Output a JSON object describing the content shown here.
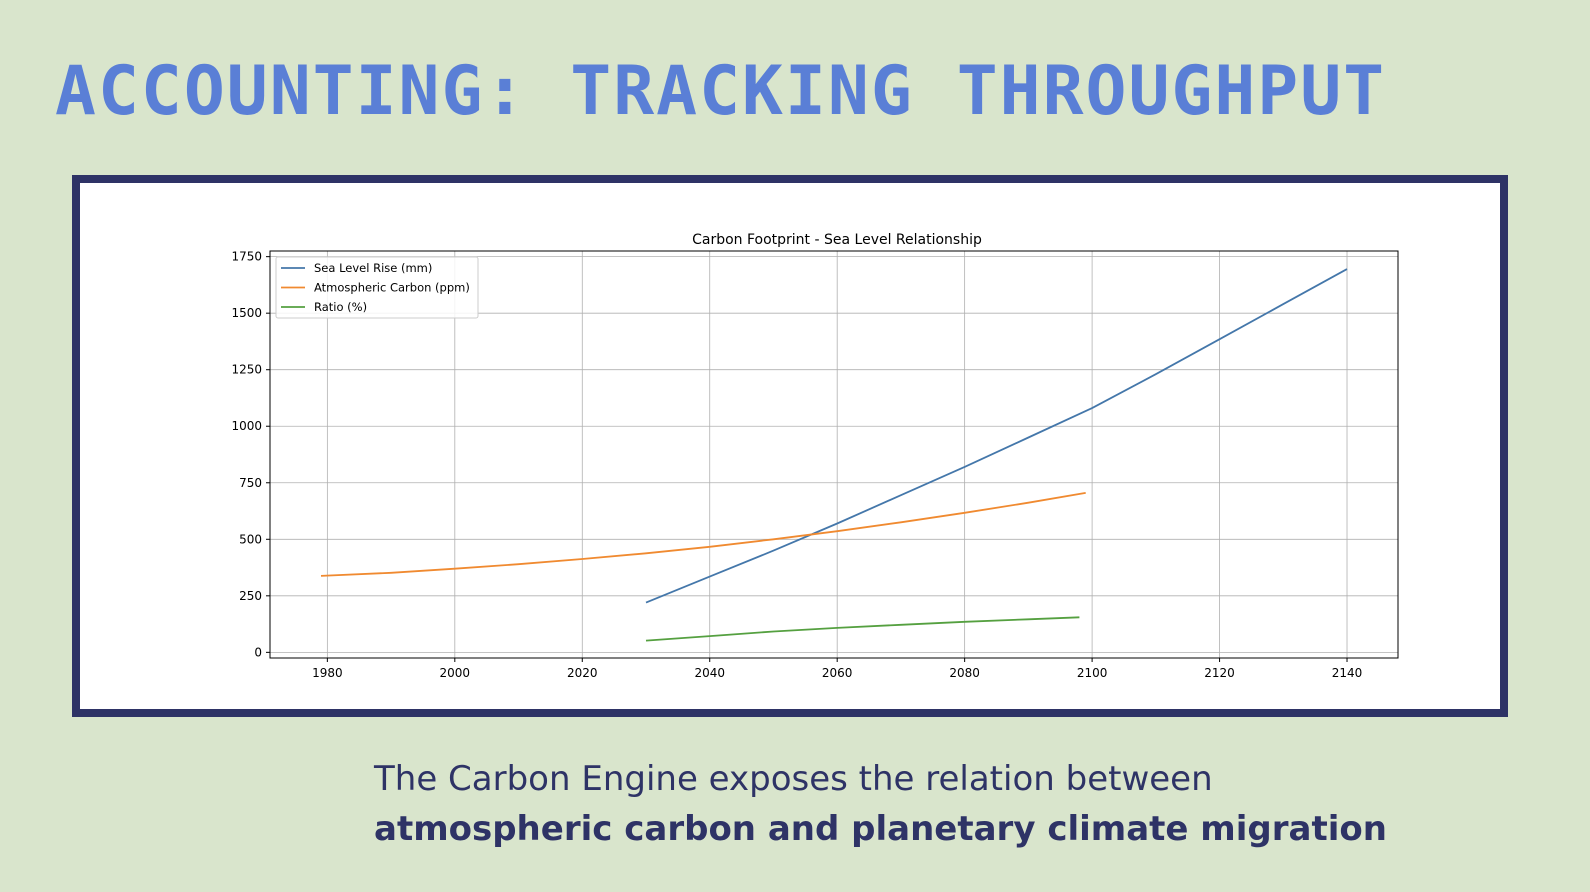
{
  "slide": {
    "title": "ACCOUNTING: TRACKING THROUGHPUT",
    "caption_line_1": "The Carbon Engine exposes the relation between",
    "caption_line_2": "atmospheric carbon and planetary climate migration",
    "colors": {
      "background": "#d9e5cc",
      "title": "#5a7fd6",
      "frame": "#2e3366",
      "caption": "#2e3366"
    }
  },
  "chart_data": {
    "type": "line",
    "title": "Carbon Footprint - Sea Level Relationship",
    "xlabel": "",
    "ylabel": "",
    "xlim": [
      1971,
      2148
    ],
    "ylim": [
      -25,
      1775
    ],
    "xticks": [
      1980,
      2000,
      2020,
      2040,
      2060,
      2080,
      2100,
      2120,
      2140
    ],
    "yticks": [
      0,
      250,
      500,
      750,
      1000,
      1250,
      1500,
      1750
    ],
    "grid": true,
    "legend_position": "top-left",
    "series": [
      {
        "name": "Sea Level Rise (mm)",
        "color": "#4477aa",
        "x": [
          2030,
          2040,
          2050,
          2060,
          2070,
          2080,
          2090,
          2100,
          2110,
          2120,
          2130,
          2140
        ],
        "y": [
          220,
          335,
          450,
          570,
          695,
          820,
          950,
          1080,
          1230,
          1385,
          1540,
          1695
        ]
      },
      {
        "name": "Atmospheric Carbon (ppm)",
        "color": "#f08a30",
        "x": [
          1979,
          1990,
          2000,
          2010,
          2020,
          2030,
          2040,
          2050,
          2060,
          2070,
          2080,
          2090,
          2099
        ],
        "y": [
          338,
          352,
          370,
          390,
          413,
          438,
          467,
          500,
          536,
          575,
          617,
          662,
          705
        ]
      },
      {
        "name": "Ratio (%)",
        "color": "#55a040",
        "x": [
          2030,
          2040,
          2050,
          2060,
          2070,
          2080,
          2090,
          2098
        ],
        "y": [
          52,
          72,
          92,
          108,
          122,
          135,
          146,
          155
        ]
      }
    ]
  }
}
